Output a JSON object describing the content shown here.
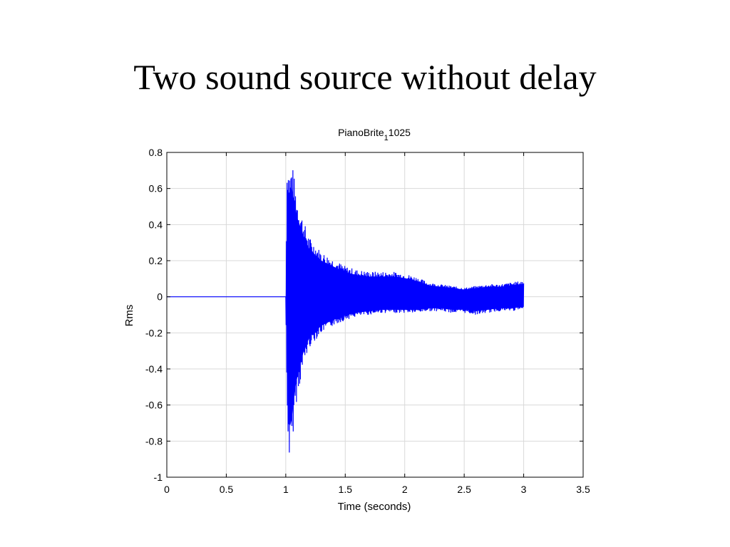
{
  "slide": {
    "title": "Two sound source without delay"
  },
  "chart_data": {
    "type": "line",
    "title": "PianoBrite",
    "title_subscript": "1",
    "title_suffix": "1025",
    "xlabel": "Time (seconds)",
    "ylabel": "Rms",
    "xlim": [
      0,
      3.5
    ],
    "ylim": [
      -1,
      0.8
    ],
    "xticks": [
      0,
      0.5,
      1,
      1.5,
      2,
      2.5,
      3,
      3.5
    ],
    "xtick_labels": [
      "0",
      "0.5",
      "1",
      "1.5",
      "2",
      "2.5",
      "3",
      "3.5"
    ],
    "yticks": [
      0.8,
      0.6,
      0.4,
      0.2,
      0,
      -0.2,
      -0.4,
      -0.6,
      -0.8,
      -1
    ],
    "ytick_labels": [
      "0.8",
      "0.6",
      "0.4",
      "0.2",
      "0",
      "-0.2",
      "-0.4",
      "-0.6",
      "-0.8",
      "-1"
    ],
    "grid": true,
    "series": [
      {
        "color": "#0000ff",
        "signal_range": [
          0,
          3.0
        ],
        "onset": 1.0,
        "upper_envelope": {
          "x": [
            0,
            1.0,
            1.01,
            1.04,
            1.05,
            1.08,
            1.1,
            1.15,
            1.2,
            1.3,
            1.4,
            1.5,
            1.6,
            1.7,
            1.8,
            1.9,
            2.0,
            2.1,
            2.2,
            2.3,
            2.4,
            2.5,
            2.6,
            2.7,
            2.8,
            2.9,
            3.0
          ],
          "y": [
            0.002,
            0.002,
            0.75,
            0.7,
            0.76,
            0.62,
            0.54,
            0.42,
            0.33,
            0.25,
            0.21,
            0.17,
            0.15,
            0.14,
            0.14,
            0.14,
            0.13,
            0.11,
            0.08,
            0.07,
            0.06,
            0.05,
            0.06,
            0.07,
            0.07,
            0.08,
            0.09
          ]
        },
        "lower_envelope": {
          "x": [
            0,
            1.0,
            1.01,
            1.03,
            1.05,
            1.08,
            1.1,
            1.15,
            1.2,
            1.3,
            1.4,
            1.5,
            1.6,
            1.7,
            1.8,
            1.9,
            2.0,
            2.1,
            2.2,
            2.3,
            2.4,
            2.5,
            2.6,
            2.7,
            2.8,
            2.9,
            3.0
          ],
          "y": [
            -0.002,
            -0.002,
            -0.65,
            -0.92,
            -0.85,
            -0.62,
            -0.55,
            -0.38,
            -0.28,
            -0.2,
            -0.16,
            -0.13,
            -0.11,
            -0.1,
            -0.09,
            -0.09,
            -0.09,
            -0.09,
            -0.08,
            -0.08,
            -0.09,
            -0.09,
            -0.1,
            -0.09,
            -0.08,
            -0.08,
            -0.07
          ]
        }
      }
    ]
  }
}
